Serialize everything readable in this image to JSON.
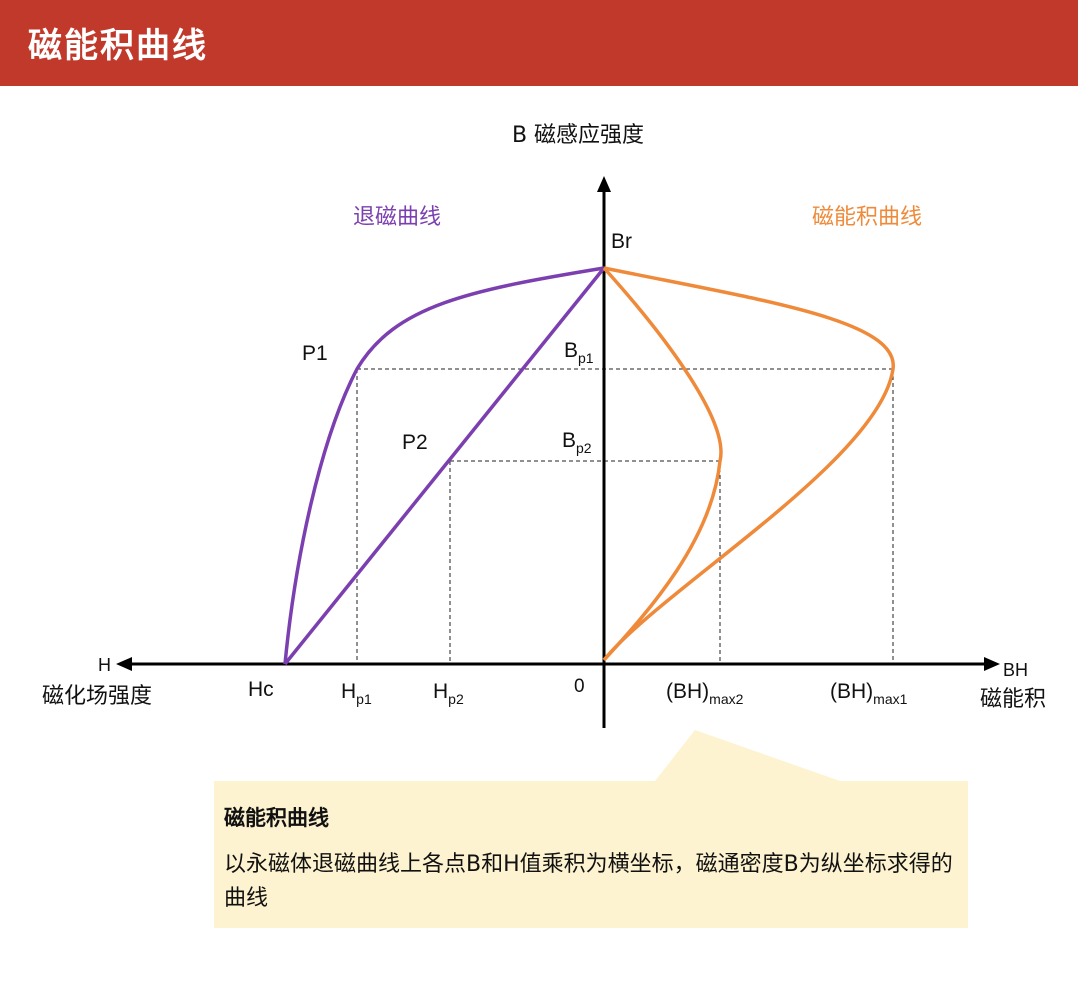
{
  "banner": {
    "title": "磁能积曲线"
  },
  "axes": {
    "y_label": "B 磁感应强度",
    "x_left_symbol": "H",
    "x_left_label": "磁化场强度",
    "x_right_symbol": "BH",
    "x_right_label": "磁能积",
    "origin": "0"
  },
  "curves": {
    "demag_label": "退磁曲线",
    "energy_label": "磁能积曲线",
    "demag_color": "#7b3fb0",
    "energy_color": "#ef8a3a"
  },
  "points": {
    "br": "Br",
    "hc": "Hc",
    "p1": "P1",
    "p2": "P2",
    "bp1": {
      "base": "B",
      "sub": "p1"
    },
    "bp2": {
      "base": "B",
      "sub": "p2"
    },
    "hp1": {
      "base": "H",
      "sub": "p1"
    },
    "hp2": {
      "base": "H",
      "sub": "p2"
    },
    "bhmax2": {
      "base": "(BH)",
      "sub": "max2"
    },
    "bhmax1": {
      "base": "(BH)",
      "sub": "max1"
    }
  },
  "callout": {
    "title": "磁能积曲线",
    "body": "以永磁体退磁曲线上各点B和H值乘积为横坐标，磁通密度B为纵坐标求得的曲线",
    "bg_color": "#fdf3d0"
  }
}
